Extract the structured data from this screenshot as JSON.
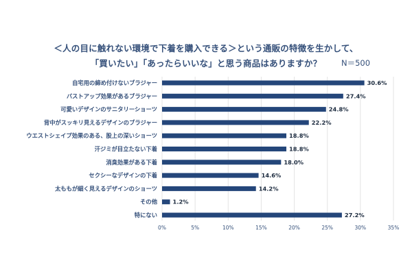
{
  "title_line_1": "＜人の目に触れない環境で下着を購入できる＞という通販の特徴を生かして、",
  "title_line_2": "「買いたい」「あったらいいな」と思う商品はありますか？",
  "sample_size": "N＝500",
  "colors": {
    "bar": "#24467a",
    "grid": "#e3e3e3",
    "text": "#35507a"
  },
  "chart_data": {
    "type": "bar",
    "orientation": "horizontal",
    "title": "＜人の目に触れない環境で下着を購入できる＞という通販の特徴を生かして、「買いたい」「あったらいいな」と思う商品はありますか？",
    "categories": [
      "自宅用の締め付けないブラジャー",
      "バストアップ効果があるブラジャー",
      "可愛いデザインのサニタリーショーツ",
      "背中がスッキリ見えるデザインのブラジャー",
      "ウエストシェイプ効果のある、股上の深いショーツ",
      "汗ジミが目立たない下着",
      "消臭効果がある下着",
      "セクシーなデザインの下着",
      "太ももが細く見えるデザインのショーツ",
      "その他",
      "特にない"
    ],
    "values": [
      30.6,
      27.4,
      24.8,
      22.2,
      18.8,
      18.8,
      18.0,
      14.6,
      14.2,
      1.2,
      27.2
    ],
    "value_labels": [
      "30.6%",
      "27.4%",
      "24.8%",
      "22.2%",
      "18.8%",
      "18.8%",
      "18.0%",
      "14.6%",
      "14.2%",
      "1.2%",
      "27.2%"
    ],
    "x_ticks": [
      0,
      5,
      10,
      15,
      20,
      25,
      30,
      35
    ],
    "x_tick_labels": [
      "0%",
      "5%",
      "10%",
      "15%",
      "20%",
      "25%",
      "30%",
      "35%"
    ],
    "xlim": [
      0,
      35
    ],
    "grid": true,
    "unit": "%"
  }
}
